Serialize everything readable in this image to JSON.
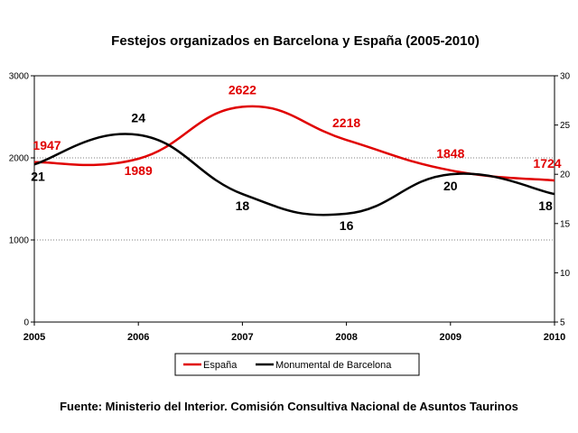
{
  "chart_data": {
    "type": "line",
    "title": "Festejos organizados en Barcelona y España (2005-2010)",
    "categories": [
      "2005",
      "2006",
      "2007",
      "2008",
      "2009",
      "2010"
    ],
    "series": [
      {
        "name": "España",
        "axis": "left",
        "color": "#e00000",
        "values": [
          1947,
          1989,
          2622,
          2218,
          1848,
          1724
        ],
        "labels": [
          "1947",
          "1989",
          "2622",
          "2218",
          "1848",
          "1724"
        ]
      },
      {
        "name": "Monumental de Barcelona",
        "axis": "right",
        "color": "#000000",
        "values": [
          21,
          24,
          18,
          16,
          20,
          18
        ],
        "labels": [
          "21",
          "24",
          "18",
          "16",
          "20",
          "18"
        ]
      }
    ],
    "ylim_left": [
      0,
      3000
    ],
    "yticks_left": [
      0,
      1000,
      2000,
      3000
    ],
    "ytick_labels_left": [
      "0",
      "1000",
      "2000",
      "3000"
    ],
    "ylim_right": [
      5,
      30
    ],
    "yticks_right": [
      5,
      10,
      15,
      20,
      25,
      30
    ],
    "ytick_labels_right": [
      "5",
      "10",
      "15",
      "20",
      "25",
      "30"
    ],
    "grid": "horizontal dotted",
    "smooth": true,
    "legend_position": "bottom",
    "source": "Fuente: Ministerio del Interior. Comisión Consultiva Nacional de Asuntos Taurinos"
  }
}
